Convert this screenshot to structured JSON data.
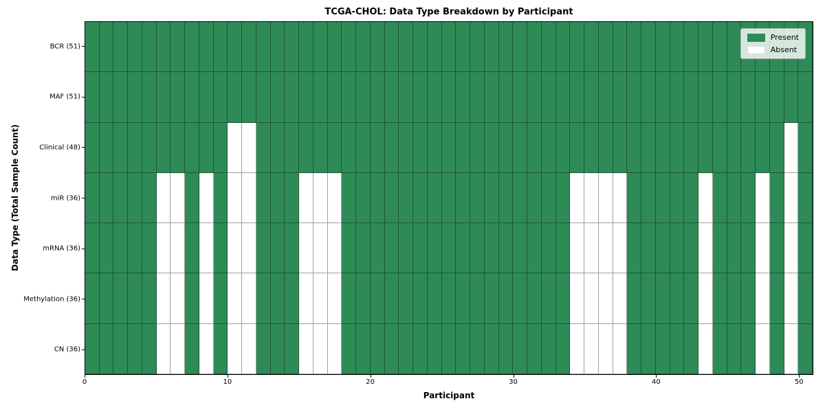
{
  "title": "TCGA-CHOL: Data Type Breakdown by Participant",
  "xlabel": "Participant",
  "ylabel": "Data Type (Total Sample Count)",
  "legend": {
    "present_label": "Present",
    "absent_label": "Absent"
  },
  "colors": {
    "present": "#2E8B57",
    "absent": "#FFFFFF",
    "grid_line": "rgba(0,0,0,0.38)",
    "axis": "#000000"
  },
  "chart_data": {
    "type": "heatmap",
    "title": "TCGA-CHOL: Data Type Breakdown by Participant",
    "xlabel": "Participant",
    "ylabel": "Data Type (Total Sample Count)",
    "x_ticks": [
      0,
      10,
      20,
      30,
      40,
      50
    ],
    "n_participants": 51,
    "xlim": [
      0,
      51
    ],
    "grid": true,
    "legend_position": "upper right",
    "legend_entries": [
      "Present",
      "Absent"
    ],
    "rows": [
      {
        "name": "BCR",
        "label": "BCR (51)",
        "present_count": 51,
        "absent_participants": []
      },
      {
        "name": "MAF",
        "label": "MAF (51)",
        "present_count": 51,
        "absent_participants": []
      },
      {
        "name": "Clinical",
        "label": "Clinical (48)",
        "present_count": 48,
        "absent_participants": [
          10,
          11,
          49
        ]
      },
      {
        "name": "miR",
        "label": "miR (36)",
        "present_count": 36,
        "absent_participants": [
          5,
          6,
          8,
          10,
          11,
          15,
          16,
          17,
          34,
          35,
          36,
          37,
          43,
          47,
          49
        ]
      },
      {
        "name": "mRNA",
        "label": "mRNA (36)",
        "present_count": 36,
        "absent_participants": [
          5,
          6,
          8,
          10,
          11,
          15,
          16,
          17,
          34,
          35,
          36,
          37,
          43,
          47,
          49
        ]
      },
      {
        "name": "Methylation",
        "label": "Methylation (36)",
        "present_count": 36,
        "absent_participants": [
          5,
          6,
          8,
          10,
          11,
          15,
          16,
          17,
          34,
          35,
          36,
          37,
          43,
          47,
          49
        ]
      },
      {
        "name": "CN",
        "label": "CN (36)",
        "present_count": 36,
        "absent_participants": [
          5,
          6,
          8,
          10,
          11,
          15,
          16,
          17,
          34,
          35,
          36,
          37,
          43,
          47,
          49
        ]
      }
    ]
  }
}
